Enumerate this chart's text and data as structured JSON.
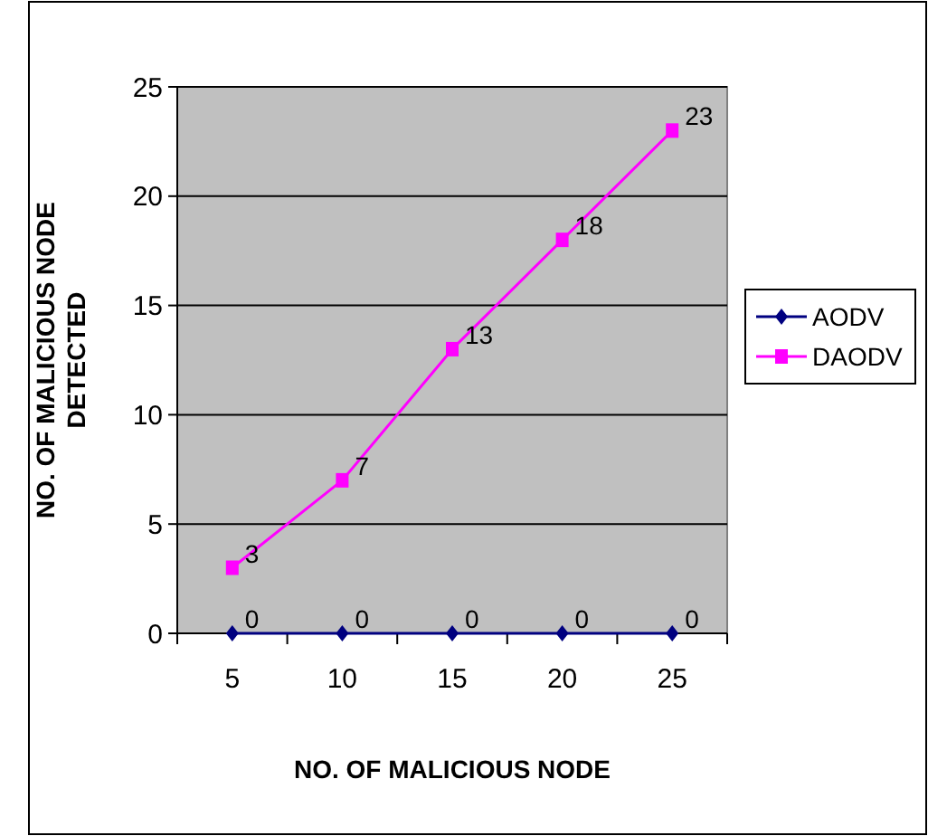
{
  "chart_data": {
    "type": "line",
    "xlabel": "NO. OF MALICIOUS NODE",
    "ylabel": "NO. OF MALICIOUS NODE DETECTED",
    "categories": [
      "5",
      "10",
      "15",
      "20",
      "25"
    ],
    "series": [
      {
        "name": "AODV",
        "color": "#000080",
        "values": [
          0,
          0,
          0,
          0,
          0
        ],
        "marker": "diamond"
      },
      {
        "name": "DAODV",
        "color": "#ff00ff",
        "values": [
          3,
          7,
          13,
          18,
          23
        ],
        "marker": "square"
      }
    ],
    "ylim": [
      0,
      25
    ],
    "yticks": [
      0,
      5,
      10,
      15,
      20,
      25
    ],
    "grid": "y",
    "legend": "right",
    "data_labels": true
  }
}
